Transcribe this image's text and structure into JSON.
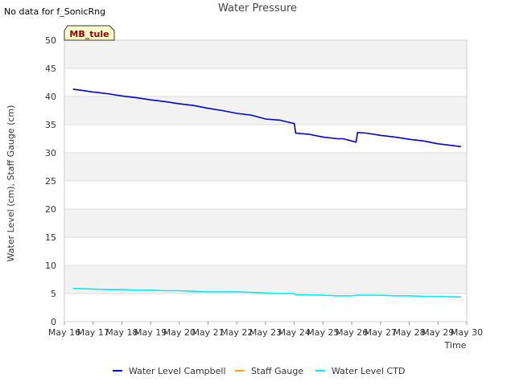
{
  "page": {
    "nodata_note": "No data for f_SonicRng",
    "site_tag": "MB_tule"
  },
  "chart_data": {
    "type": "line",
    "title": "Water Pressure",
    "xlabel": "Time",
    "ylabel": "Water Level (cm), Staff Gauge (cm)",
    "ylim": [
      0,
      50
    ],
    "yticks": [
      0,
      5,
      10,
      15,
      20,
      25,
      30,
      35,
      40,
      45,
      50
    ],
    "xlim": [
      16,
      30
    ],
    "xticks": [
      {
        "v": 16,
        "label": "May 16"
      },
      {
        "v": 17,
        "label": "May 17"
      },
      {
        "v": 18,
        "label": "May 18"
      },
      {
        "v": 19,
        "label": "May 19"
      },
      {
        "v": 20,
        "label": "May 20"
      },
      {
        "v": 21,
        "label": "May 21"
      },
      {
        "v": 22,
        "label": "May 22"
      },
      {
        "v": 23,
        "label": "May 23"
      },
      {
        "v": 24,
        "label": "May 24"
      },
      {
        "v": 25,
        "label": "May 25"
      },
      {
        "v": 26,
        "label": "May 26"
      },
      {
        "v": 27,
        "label": "May 27"
      },
      {
        "v": 28,
        "label": "May 28"
      },
      {
        "v": 29,
        "label": "May 29"
      },
      {
        "v": 30,
        "label": "May 30"
      }
    ],
    "grid": true,
    "legend_position": "bottom",
    "series": [
      {
        "name": "Water Level Campbell",
        "color": "#0000cc",
        "x": [
          16.3,
          16.6,
          17.0,
          17.5,
          18.0,
          18.5,
          19.0,
          19.5,
          20.0,
          20.5,
          21.0,
          21.5,
          22.0,
          22.5,
          23.0,
          23.5,
          23.9,
          24.0,
          24.05,
          24.5,
          25.0,
          25.5,
          25.7,
          26.0,
          26.15,
          26.2,
          26.5,
          27.0,
          27.5,
          28.0,
          28.5,
          29.0,
          29.5,
          29.8
        ],
        "y": [
          41.3,
          41.1,
          40.8,
          40.5,
          40.1,
          39.8,
          39.4,
          39.1,
          38.7,
          38.4,
          37.9,
          37.5,
          37.0,
          36.7,
          36.0,
          35.8,
          35.3,
          35.2,
          33.5,
          33.3,
          32.8,
          32.5,
          32.5,
          32.1,
          31.9,
          33.6,
          33.5,
          33.1,
          32.8,
          32.4,
          32.1,
          31.6,
          31.3,
          31.1
        ]
      },
      {
        "name": "Staff Gauge",
        "color": "#ffa500",
        "x": [],
        "y": []
      },
      {
        "name": "Water Level CTD",
        "color": "#00eeee",
        "x": [
          16.3,
          17.0,
          17.5,
          18.0,
          18.5,
          19.0,
          19.5,
          20.0,
          20.5,
          21.0,
          21.5,
          22.0,
          22.5,
          23.0,
          23.5,
          24.0,
          24.05,
          25.0,
          25.5,
          26.0,
          26.2,
          27.0,
          27.5,
          28.0,
          28.5,
          29.0,
          29.5,
          29.8
        ],
        "y": [
          5.9,
          5.8,
          5.7,
          5.7,
          5.6,
          5.6,
          5.5,
          5.5,
          5.4,
          5.3,
          5.3,
          5.3,
          5.2,
          5.1,
          5.0,
          5.0,
          4.8,
          4.7,
          4.6,
          4.6,
          4.7,
          4.7,
          4.6,
          4.6,
          4.5,
          4.5,
          4.4,
          4.4
        ]
      }
    ]
  }
}
